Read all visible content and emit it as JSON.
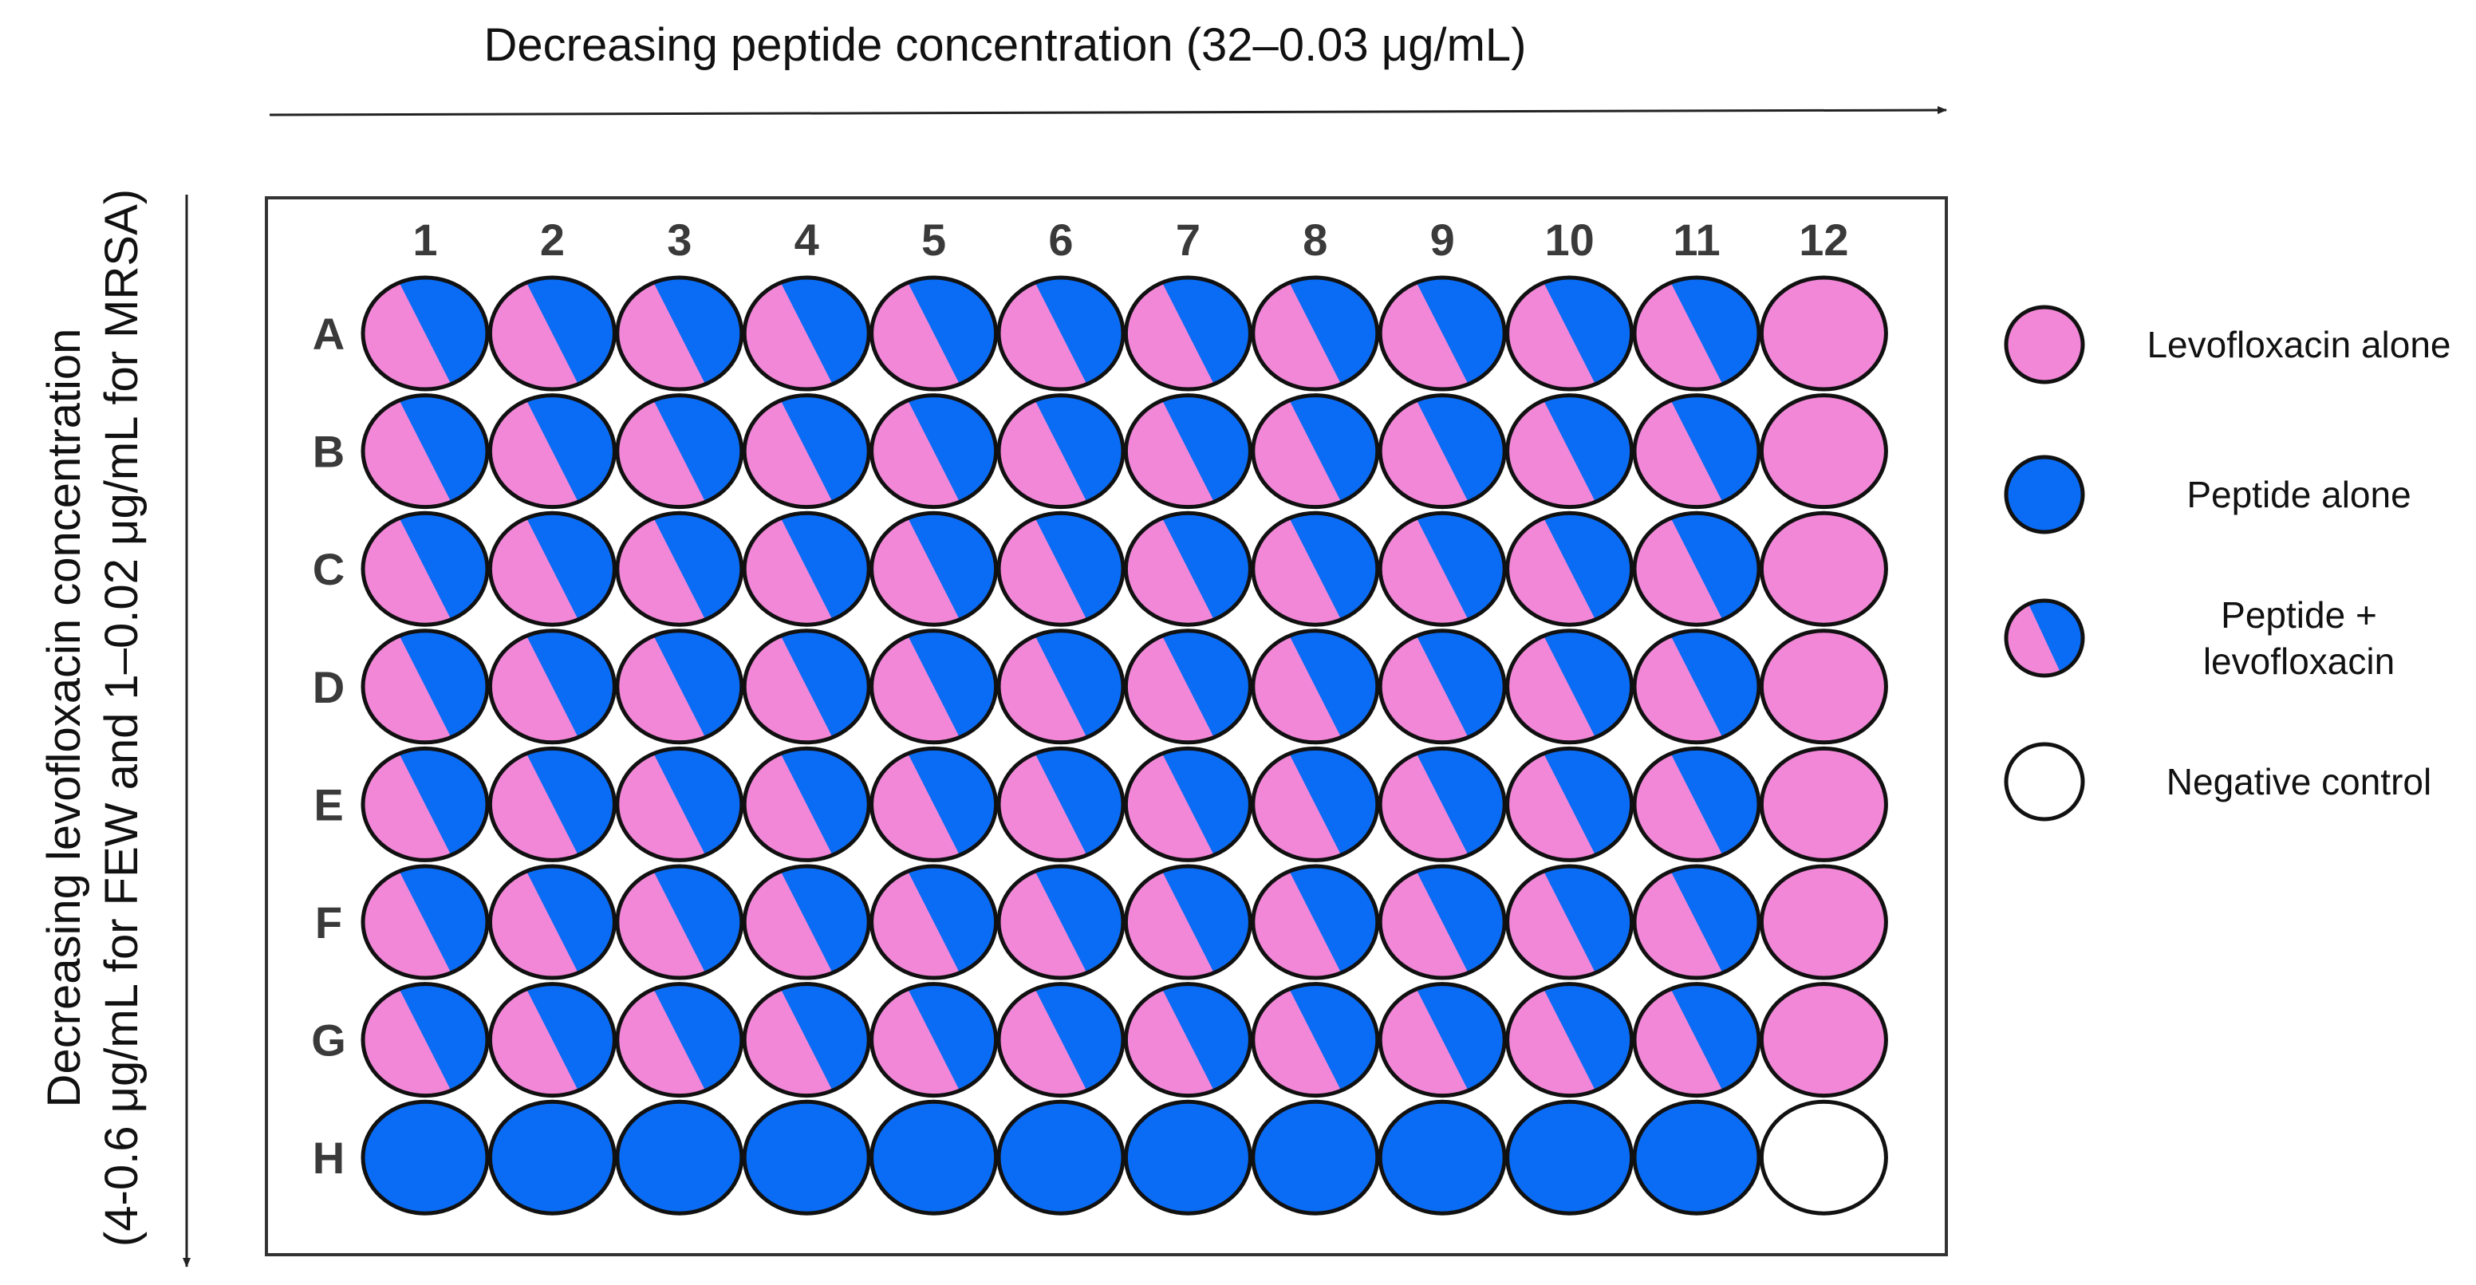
{
  "diagram": {
    "top_label": "Decreasing peptide concentration (32–0.03 μg/mL)",
    "side_label_line1": "Decreasing levofloxacin concentration",
    "side_label_line2": "(4-0.6 μg/mL for FEW and 1–0.02 μg/mL for MRSA)",
    "columns": [
      "1",
      "2",
      "3",
      "4",
      "5",
      "6",
      "7",
      "8",
      "9",
      "10",
      "11",
      "12"
    ],
    "rows": [
      "A",
      "B",
      "C",
      "D",
      "E",
      "F",
      "G",
      "H"
    ],
    "well_types": [
      [
        "combo",
        "combo",
        "combo",
        "combo",
        "combo",
        "combo",
        "combo",
        "combo",
        "combo",
        "combo",
        "combo",
        "levo"
      ],
      [
        "combo",
        "combo",
        "combo",
        "combo",
        "combo",
        "combo",
        "combo",
        "combo",
        "combo",
        "combo",
        "combo",
        "levo"
      ],
      [
        "combo",
        "combo",
        "combo",
        "combo",
        "combo",
        "combo",
        "combo",
        "combo",
        "combo",
        "combo",
        "combo",
        "levo"
      ],
      [
        "combo",
        "combo",
        "combo",
        "combo",
        "combo",
        "combo",
        "combo",
        "combo",
        "combo",
        "combo",
        "combo",
        "levo"
      ],
      [
        "combo",
        "combo",
        "combo",
        "combo",
        "combo",
        "combo",
        "combo",
        "combo",
        "combo",
        "combo",
        "combo",
        "levo"
      ],
      [
        "combo",
        "combo",
        "combo",
        "combo",
        "combo",
        "combo",
        "combo",
        "combo",
        "combo",
        "combo",
        "combo",
        "levo"
      ],
      [
        "combo",
        "combo",
        "combo",
        "combo",
        "combo",
        "combo",
        "combo",
        "combo",
        "combo",
        "combo",
        "combo",
        "levo"
      ],
      [
        "peptide",
        "peptide",
        "peptide",
        "peptide",
        "peptide",
        "peptide",
        "peptide",
        "peptide",
        "peptide",
        "peptide",
        "peptide",
        "negative"
      ]
    ],
    "legend": [
      {
        "type": "levo",
        "lines": [
          "Levofloxacin alone"
        ]
      },
      {
        "type": "peptide",
        "lines": [
          "Peptide alone"
        ]
      },
      {
        "type": "combo",
        "lines": [
          "Peptide +",
          "levofloxacin"
        ]
      },
      {
        "type": "negative",
        "lines": [
          "Negative control"
        ]
      }
    ],
    "colors": {
      "levofloxacin": "#f287d8",
      "peptide": "#0a6cf5",
      "negative": "#ffffff",
      "outline": "#111111"
    }
  }
}
